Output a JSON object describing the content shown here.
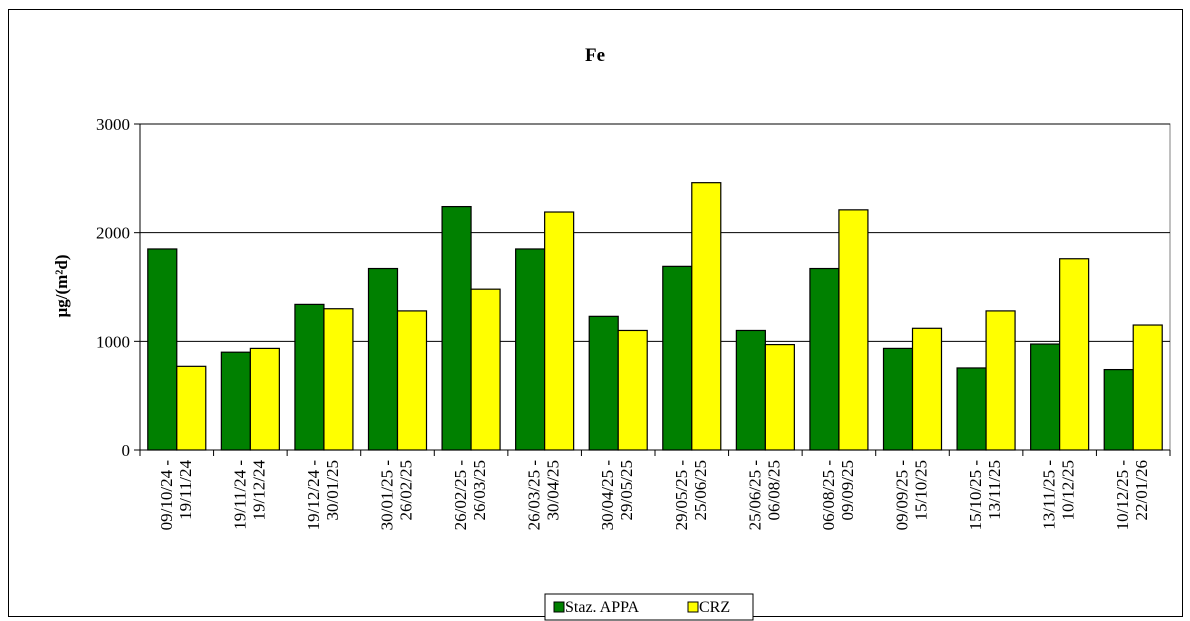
{
  "chart_data": {
    "type": "bar",
    "title": "Fe",
    "xlabel": "",
    "ylabel": "µg/(m²d)",
    "ylim": [
      0,
      3000
    ],
    "yticks": [
      0,
      1000,
      2000,
      3000
    ],
    "grid": true,
    "legend_position": "bottom",
    "categories": [
      [
        "09/10/24 -",
        "19/11/24"
      ],
      [
        "19/11/24 -",
        "19/12/24"
      ],
      [
        "19/12/24 -",
        "30/01/25"
      ],
      [
        "30/01/25 -",
        "26/02/25"
      ],
      [
        "26/02/25 -",
        "26/03/25"
      ],
      [
        "26/03/25 -",
        "30/04/25"
      ],
      [
        "30/04/25 -",
        "29/05/25"
      ],
      [
        "29/05/25 -",
        "25/06/25"
      ],
      [
        "25/06/25 -",
        "06/08/25"
      ],
      [
        "06/08/25 -",
        "09/09/25"
      ],
      [
        "09/09/25 -",
        "15/10/25"
      ],
      [
        "15/10/25 -",
        "13/11/25"
      ],
      [
        "13/11/25 -",
        "10/12/25"
      ],
      [
        "10/12/25 -",
        "22/01/26"
      ]
    ],
    "series": [
      {
        "name": "Staz. APPA",
        "color": "#008000",
        "values": [
          1850,
          900,
          1340,
          1670,
          2240,
          1850,
          1230,
          1690,
          1100,
          1670,
          935,
          755,
          975,
          740
        ]
      },
      {
        "name": "CRZ",
        "color": "#ffff00",
        "values": [
          770,
          935,
          1300,
          1280,
          1480,
          2190,
          1100,
          2460,
          970,
          2210,
          1120,
          1280,
          1760,
          1150
        ]
      }
    ]
  }
}
